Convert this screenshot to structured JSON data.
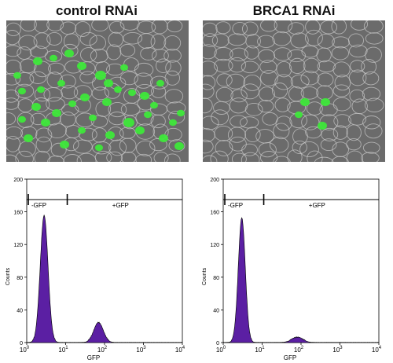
{
  "panels": {
    "left_title": "control RNAi",
    "right_title": "BRCA1 RNAi"
  },
  "micrograph_colors": {
    "background": "#6b6b6b",
    "cell_edge": "#c8c8c8",
    "nucleus": "#3ee83a"
  },
  "histogram_colors": {
    "fill": "#5b1fa3",
    "outline": "#000000"
  },
  "chart_data": [
    {
      "type": "area",
      "title": "",
      "xlabel": "GFP",
      "ylabel": "Counts",
      "x_scale": "log",
      "xlim": [
        1,
        10000
      ],
      "ylim": [
        0,
        200
      ],
      "xticks": [
        "10^0",
        "10^1",
        "10^2",
        "10^3",
        "10^4"
      ],
      "yticks": [
        "0",
        "40",
        "80",
        "120",
        "160",
        "200"
      ],
      "gates": [
        {
          "label": "-GFP",
          "range": [
            1,
            11
          ]
        },
        {
          "label": "+GFP",
          "range": [
            11,
            10000
          ]
        }
      ],
      "gate_level": 175,
      "peaks": [
        {
          "center": 2.8,
          "height": 155,
          "width": 0.1
        },
        {
          "center": 70,
          "height": 24,
          "width": 0.12
        }
      ]
    },
    {
      "type": "area",
      "title": "",
      "xlabel": "GFP",
      "ylabel": "Counts",
      "x_scale": "log",
      "xlim": [
        1,
        10000
      ],
      "ylim": [
        0,
        200
      ],
      "xticks": [
        "10^0",
        "10^1",
        "10^2",
        "10^3",
        "10^4"
      ],
      "yticks": [
        "0",
        "40",
        "80",
        "120",
        "160",
        "200"
      ],
      "gates": [
        {
          "label": "-GFP",
          "range": [
            1,
            11
          ]
        },
        {
          "label": "+GFP",
          "range": [
            11,
            10000
          ]
        }
      ],
      "gate_level": 175,
      "peaks": [
        {
          "center": 3.0,
          "height": 152,
          "width": 0.09
        },
        {
          "center": 80,
          "height": 6,
          "width": 0.14
        }
      ]
    }
  ],
  "labels": {
    "neg_gate": "-GFP",
    "pos_gate": "+GFP",
    "xlabel": "GFP",
    "ylabel": "Counts"
  }
}
